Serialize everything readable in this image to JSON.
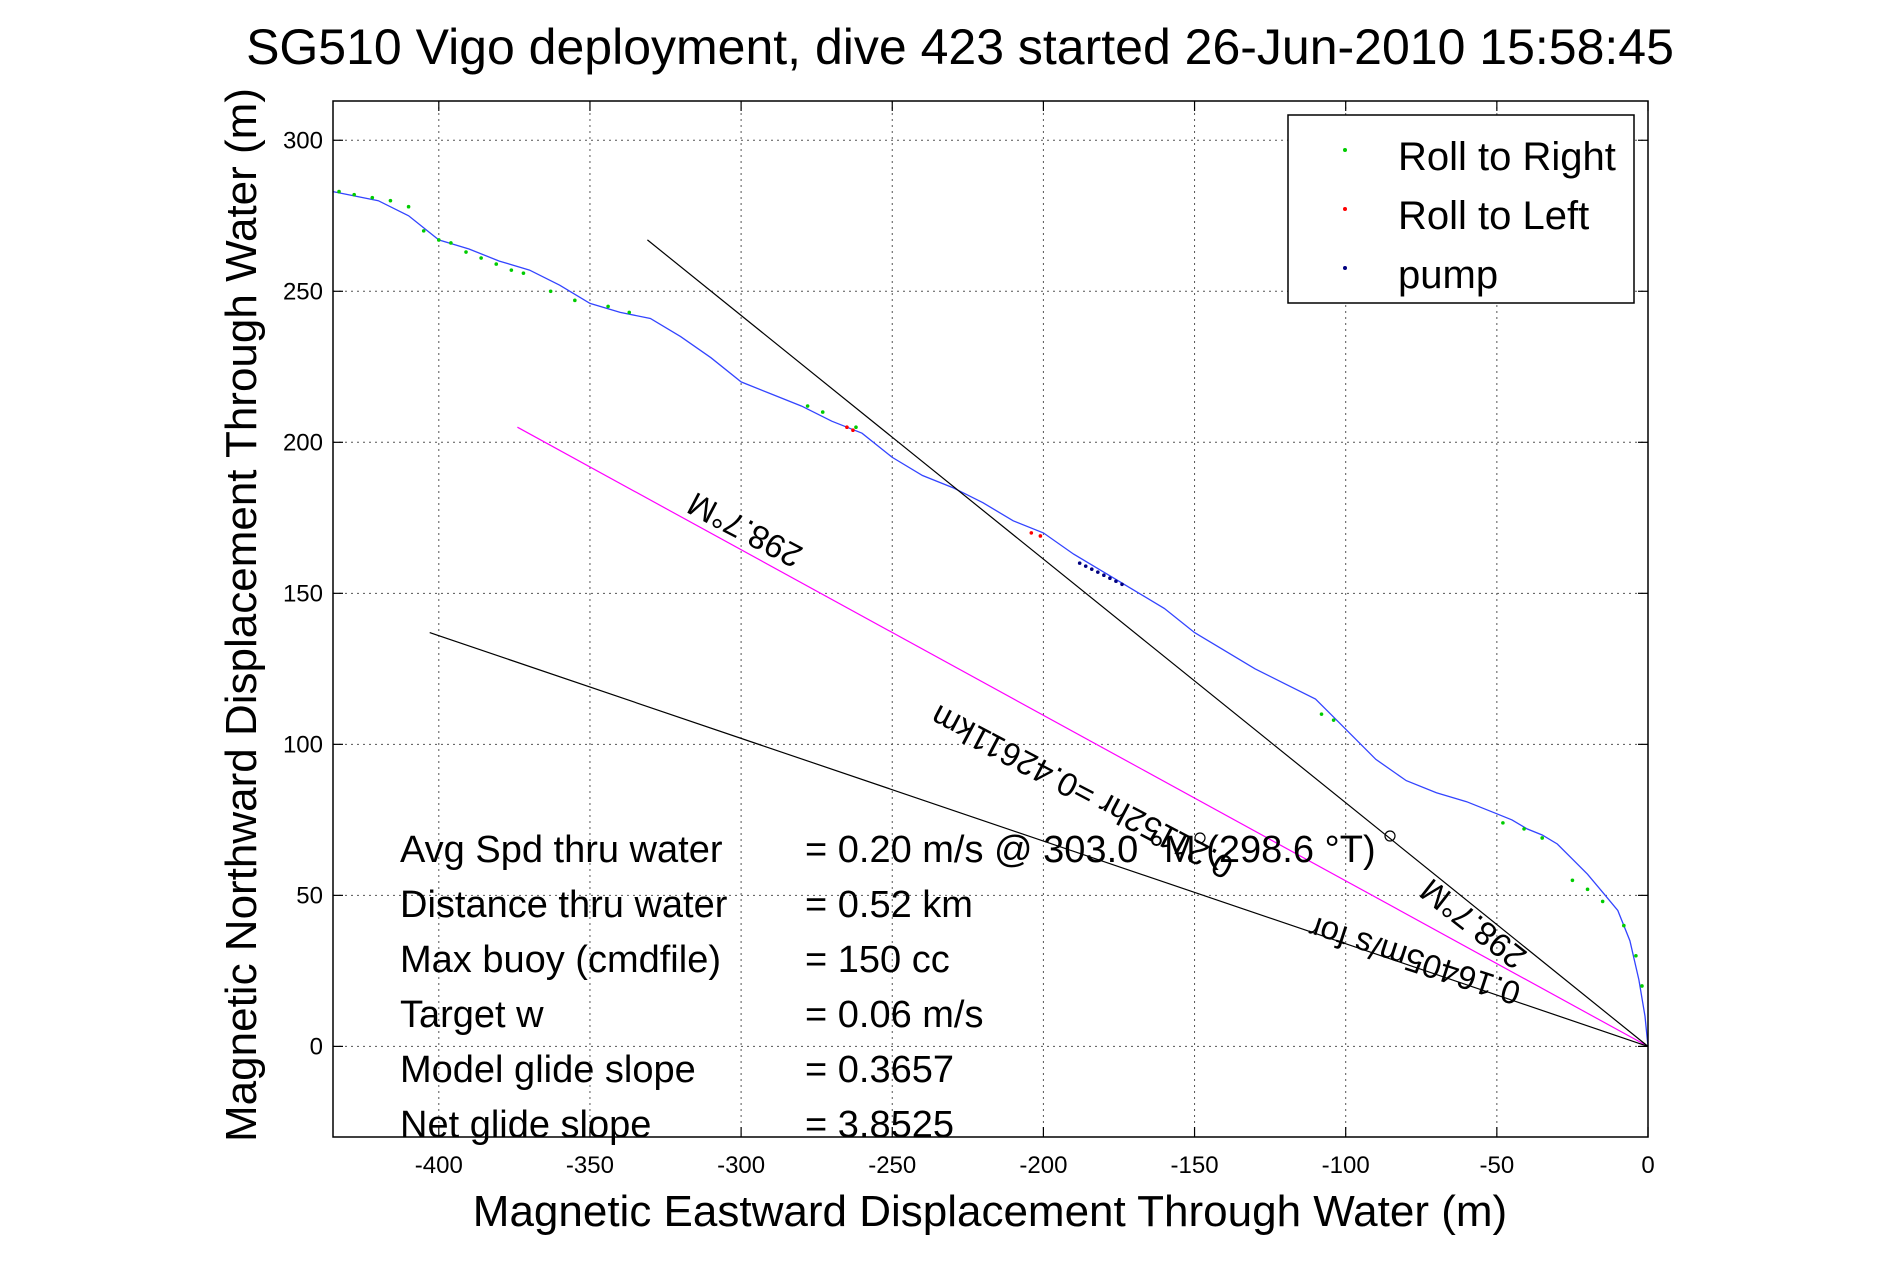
{
  "chart_data": {
    "type": "line",
    "title": "SG510 Vigo deployment, dive 423 started 26-Jun-2010 15:58:45",
    "xlabel": "Magnetic Eastward Displacement Through Water (m)",
    "ylabel": "Magnetic Northward Displacement Through Water (m)",
    "xlim": [
      -435,
      0
    ],
    "ylim": [
      -30,
      313
    ],
    "grid": true,
    "xticks": [
      -400,
      -350,
      -300,
      -250,
      -200,
      -150,
      -100,
      -50,
      0
    ],
    "yticks": [
      0,
      50,
      100,
      150,
      200,
      250,
      300
    ],
    "tick_labels_x": [
      "-400",
      "-350",
      "-300",
      "-250",
      "-200",
      "-150",
      "-100",
      "-50",
      "0"
    ],
    "tick_labels_y": [
      "0",
      "50",
      "100",
      "150",
      "200",
      "250",
      "300"
    ],
    "legend": {
      "placement": "top-right",
      "entries": [
        {
          "label": "Roll to Right",
          "color": "#00cc00"
        },
        {
          "label": "Roll to Left",
          "color": "#ff0000"
        },
        {
          "label": "pump",
          "color": "#000080"
        }
      ]
    },
    "series": [
      {
        "color": "#3344ff",
        "x": [
          0,
          -1,
          -3,
          -6,
          -10,
          -15,
          -20,
          -25,
          -30,
          -35,
          -40,
          -45,
          -50,
          -60,
          -70,
          -80,
          -90,
          -100,
          -105,
          -110,
          -120,
          -130,
          -140,
          -150,
          -160,
          -170,
          -180,
          -190,
          -200,
          -210,
          -220,
          -230,
          -240,
          -250,
          -260,
          -270,
          -280,
          -290,
          -300,
          -310,
          -320,
          -330,
          -340,
          -350,
          -360,
          -370,
          -380,
          -390,
          -400,
          -410,
          -420,
          -435
        ],
        "y": [
          0,
          10,
          22,
          35,
          45,
          51,
          57,
          62,
          67,
          70,
          72,
          75,
          77,
          81,
          84,
          88,
          95,
          105,
          110,
          115,
          120,
          125,
          131,
          137,
          145,
          151,
          157,
          163,
          170,
          174,
          180,
          185,
          189,
          195,
          203,
          207,
          212,
          216,
          220,
          228,
          235,
          241,
          243,
          246,
          252,
          257,
          260,
          264,
          267,
          275,
          280,
          283
        ]
      },
      {
        "color": "#ff00ff",
        "x": [
          0,
          -374
        ],
        "y": [
          0,
          205
        ]
      },
      {
        "color": "#000000",
        "x": [
          0,
          -331
        ],
        "y": [
          0,
          267
        ]
      },
      {
        "color": "#000000",
        "x": [
          0,
          -403
        ],
        "y": [
          0,
          137
        ]
      }
    ],
    "markers": {
      "roll_right": {
        "x": [
          -433,
          -428,
          -422,
          -416,
          -410,
          -405,
          -400,
          -396,
          -391,
          -386,
          -381,
          -376,
          -372,
          -363,
          -355,
          -344,
          -337,
          -278,
          -273,
          -262,
          -108,
          -104,
          -48,
          -41,
          -35,
          -25,
          -20,
          -15,
          -8,
          -4,
          -2
        ],
        "y": [
          283,
          282,
          281,
          280,
          278,
          270,
          267,
          266,
          263,
          261,
          259,
          257,
          256,
          250,
          247,
          245,
          243,
          212,
          210,
          205,
          110,
          108,
          74,
          72,
          69,
          55,
          52,
          48,
          40,
          30,
          20
        ]
      },
      "roll_left": {
        "x": [
          -265,
          -263,
          -204,
          -201
        ],
        "y": [
          205,
          204,
          170,
          169
        ]
      },
      "pump": {
        "x": [
          -188,
          -186,
          -184,
          -182,
          -180,
          -178,
          -176,
          -174
        ],
        "y": [
          160,
          159,
          158,
          157,
          156,
          155,
          154,
          153
        ]
      }
    },
    "annotations": [
      {
        "text": "298.7°M"
      },
      {
        "text": "0.21152hr =0.42611km"
      },
      {
        "text": "298.7°M"
      },
      {
        "text": "0.16405m/s for"
      }
    ],
    "stats": [
      {
        "label": "Avg Spd thru water",
        "value": "=  0.20 m/s @ 303.0 °M (298.6 °T)"
      },
      {
        "label": "Distance thru water",
        "value": "=  0.52 km"
      },
      {
        "label": "Max buoy (cmdfile)",
        "value": "= 150 cc"
      },
      {
        "label": "Target w",
        "value": "= 0.06 m/s"
      },
      {
        "label": "Model glide slope",
        "value": "= 0.3657"
      },
      {
        "label": "Net glide slope",
        "value": "= 3.8525"
      }
    ]
  }
}
